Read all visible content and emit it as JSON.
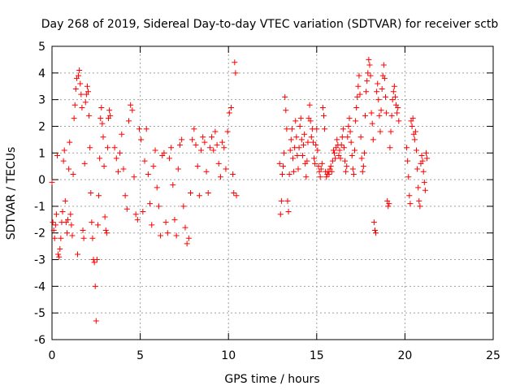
{
  "chart_data": {
    "type": "scatter",
    "title": "Day 268 of 2019, Sidereal Day-to-day VTEC variation (SDTVAR) for receiver sctb",
    "xlabel": "GPS time / hours",
    "ylabel": "SDTVAR / TECUs",
    "xlim": [
      0,
      25
    ],
    "ylim": [
      -6,
      5
    ],
    "xticks": [
      0,
      5,
      10,
      15,
      20,
      25
    ],
    "yticks": [
      -6,
      -5,
      -4,
      -3,
      -2,
      -1,
      0,
      1,
      2,
      3,
      4,
      5
    ],
    "xtick_labels": [
      "0",
      "5",
      "10",
      "15",
      "20",
      "25"
    ],
    "ytick_labels": [
      "-6",
      "-5",
      "-4",
      "-3",
      "-2",
      "-1",
      "0",
      "1",
      "2",
      "3",
      "4",
      "5"
    ],
    "grid": true,
    "marker": "+",
    "series": [
      {
        "name": "SDTVAR",
        "color": "#ff0000",
        "points": [
          [
            0.0,
            -0.1
          ],
          [
            0.05,
            -1.6
          ],
          [
            0.1,
            -1.9
          ],
          [
            0.15,
            -2.2
          ],
          [
            0.2,
            -1.7
          ],
          [
            0.25,
            -1.3
          ],
          [
            0.3,
            0.9
          ],
          [
            0.35,
            -2.8
          ],
          [
            0.4,
            -2.9
          ],
          [
            0.45,
            -2.6
          ],
          [
            0.5,
            -2.2
          ],
          [
            0.55,
            -1.6
          ],
          [
            0.6,
            -1.2
          ],
          [
            0.65,
            0.7
          ],
          [
            0.7,
            1.1
          ],
          [
            0.75,
            -0.8
          ],
          [
            0.8,
            -1.6
          ],
          [
            0.85,
            -2.0
          ],
          [
            0.9,
            -1.5
          ],
          [
            0.95,
            0.4
          ],
          [
            1.0,
            1.4
          ],
          [
            1.05,
            -1.3
          ],
          [
            1.1,
            -1.7
          ],
          [
            1.15,
            -2.1
          ],
          [
            1.2,
            0.2
          ],
          [
            1.25,
            2.3
          ],
          [
            1.3,
            2.8
          ],
          [
            1.35,
            3.4
          ],
          [
            1.4,
            3.8
          ],
          [
            1.45,
            -2.8
          ],
          [
            1.5,
            3.9
          ],
          [
            1.55,
            4.1
          ],
          [
            1.6,
            3.6
          ],
          [
            1.65,
            3.2
          ],
          [
            1.7,
            2.7
          ],
          [
            1.75,
            -1.9
          ],
          [
            1.8,
            -2.2
          ],
          [
            1.85,
            0.6
          ],
          [
            1.9,
            2.9
          ],
          [
            1.95,
            3.2
          ],
          [
            2.0,
            3.5
          ],
          [
            2.05,
            3.3
          ],
          [
            2.1,
            2.4
          ],
          [
            2.15,
            1.2
          ],
          [
            2.2,
            -0.5
          ],
          [
            2.25,
            -1.6
          ],
          [
            2.3,
            -2.2
          ],
          [
            2.35,
            -3.0
          ],
          [
            2.4,
            -3.1
          ],
          [
            2.45,
            -4.0
          ],
          [
            2.5,
            -5.3
          ],
          [
            2.55,
            -3.0
          ],
          [
            2.6,
            -1.7
          ],
          [
            2.65,
            -0.6
          ],
          [
            2.7,
            0.8
          ],
          [
            2.75,
            2.3
          ],
          [
            2.8,
            2.7
          ],
          [
            2.85,
            2.1
          ],
          [
            2.9,
            1.6
          ],
          [
            2.95,
            0.5
          ],
          [
            3.0,
            -1.4
          ],
          [
            3.05,
            -1.9
          ],
          [
            3.1,
            -2.0
          ],
          [
            3.15,
            1.2
          ],
          [
            3.2,
            2.3
          ],
          [
            3.25,
            2.6
          ],
          [
            3.3,
            2.4
          ],
          [
            3.55,
            1.2
          ],
          [
            3.65,
            0.8
          ],
          [
            3.75,
            0.3
          ],
          [
            3.85,
            1.0
          ],
          [
            3.95,
            1.7
          ],
          [
            4.05,
            0.4
          ],
          [
            4.15,
            -0.6
          ],
          [
            4.25,
            -1.1
          ],
          [
            4.35,
            2.2
          ],
          [
            4.45,
            2.8
          ],
          [
            4.55,
            2.6
          ],
          [
            4.65,
            0.1
          ],
          [
            4.75,
            -1.3
          ],
          [
            4.85,
            -1.5
          ],
          [
            4.95,
            1.9
          ],
          [
            5.05,
            1.5
          ],
          [
            5.15,
            -1.2
          ],
          [
            5.25,
            0.7
          ],
          [
            5.35,
            1.9
          ],
          [
            5.45,
            0.2
          ],
          [
            5.55,
            -0.9
          ],
          [
            5.65,
            -1.7
          ],
          [
            5.75,
            0.5
          ],
          [
            5.85,
            1.1
          ],
          [
            5.95,
            -0.3
          ],
          [
            6.05,
            -1.0
          ],
          [
            6.15,
            -2.1
          ],
          [
            6.25,
            0.9
          ],
          [
            6.35,
            1.0
          ],
          [
            6.45,
            -1.6
          ],
          [
            6.55,
            -2.0
          ],
          [
            6.65,
            0.8
          ],
          [
            6.75,
            1.2
          ],
          [
            6.85,
            -0.2
          ],
          [
            6.95,
            -1.5
          ],
          [
            7.05,
            -2.1
          ],
          [
            7.15,
            0.4
          ],
          [
            7.25,
            1.3
          ],
          [
            7.35,
            1.5
          ],
          [
            7.45,
            -1.0
          ],
          [
            7.55,
            -1.8
          ],
          [
            7.65,
            -2.4
          ],
          [
            7.75,
            -2.2
          ],
          [
            7.85,
            -0.5
          ],
          [
            7.95,
            1.5
          ],
          [
            8.05,
            1.9
          ],
          [
            8.15,
            1.3
          ],
          [
            8.25,
            0.5
          ],
          [
            8.35,
            -0.6
          ],
          [
            8.45,
            1.1
          ],
          [
            8.55,
            1.6
          ],
          [
            8.65,
            1.4
          ],
          [
            8.75,
            0.3
          ],
          [
            8.85,
            -0.5
          ],
          [
            8.95,
            1.2
          ],
          [
            9.05,
            1.6
          ],
          [
            9.15,
            1.1
          ],
          [
            9.25,
            1.8
          ],
          [
            9.35,
            1.3
          ],
          [
            9.45,
            0.6
          ],
          [
            9.55,
            0.1
          ],
          [
            9.65,
            1.4
          ],
          [
            9.75,
            1.2
          ],
          [
            9.85,
            0.4
          ],
          [
            9.95,
            1.8
          ],
          [
            10.05,
            2.5
          ],
          [
            10.15,
            2.7
          ],
          [
            10.25,
            0.2
          ],
          [
            10.3,
            -0.5
          ],
          [
            10.35,
            4.4
          ],
          [
            10.4,
            4.0
          ],
          [
            10.45,
            -0.6
          ],
          [
            12.9,
            0.6
          ],
          [
            12.95,
            -1.3
          ],
          [
            13.0,
            -0.8
          ],
          [
            13.05,
            0.2
          ],
          [
            13.1,
            0.5
          ],
          [
            13.15,
            1.0
          ],
          [
            13.2,
            3.1
          ],
          [
            13.25,
            2.6
          ],
          [
            13.3,
            1.9
          ],
          [
            13.35,
            -0.8
          ],
          [
            13.4,
            -1.2
          ],
          [
            13.45,
            0.2
          ],
          [
            13.5,
            1.1
          ],
          [
            13.55,
            1.5
          ],
          [
            13.6,
            1.9
          ],
          [
            13.65,
            0.8
          ],
          [
            13.7,
            0.3
          ],
          [
            13.75,
            1.2
          ],
          [
            13.8,
            2.2
          ],
          [
            13.85,
            1.6
          ],
          [
            13.9,
            0.9
          ],
          [
            13.95,
            0.4
          ],
          [
            14.0,
            1.2
          ],
          [
            14.05,
            2.0
          ],
          [
            14.1,
            2.3
          ],
          [
            14.15,
            1.5
          ],
          [
            14.2,
            0.9
          ],
          [
            14.25,
            1.3
          ],
          [
            14.3,
            1.7
          ],
          [
            14.35,
            0.6
          ],
          [
            14.4,
            0.1
          ],
          [
            14.45,
            0.7
          ],
          [
            14.5,
            1.4
          ],
          [
            14.55,
            2.3
          ],
          [
            14.6,
            2.8
          ],
          [
            14.65,
            2.2
          ],
          [
            14.7,
            1.6
          ],
          [
            14.75,
            1.9
          ],
          [
            14.8,
            1.4
          ],
          [
            14.85,
            0.8
          ],
          [
            14.9,
            0.6
          ],
          [
            14.95,
            1.3
          ],
          [
            15.0,
            1.9
          ],
          [
            15.05,
            1.1
          ],
          [
            15.1,
            0.5
          ],
          [
            15.15,
            0.3
          ],
          [
            15.2,
            0.1
          ],
          [
            15.25,
            0.4
          ],
          [
            15.3,
            0.6
          ],
          [
            15.35,
            2.7
          ],
          [
            15.4,
            2.4
          ],
          [
            15.45,
            1.9
          ],
          [
            15.5,
            0.3
          ],
          [
            15.55,
            0.1
          ],
          [
            15.6,
            0.2
          ],
          [
            15.65,
            0.3
          ],
          [
            15.7,
            0.2
          ],
          [
            15.75,
            0.4
          ],
          [
            15.8,
            0.5
          ],
          [
            15.85,
            0.3
          ],
          [
            15.9,
            0.7
          ],
          [
            15.95,
            1.1
          ],
          [
            16.0,
            1.0
          ],
          [
            16.05,
            0.8
          ],
          [
            16.1,
            1.2
          ],
          [
            16.15,
            1.5
          ],
          [
            16.2,
            1.3
          ],
          [
            16.25,
            0.9
          ],
          [
            16.3,
            1.1
          ],
          [
            16.35,
            0.8
          ],
          [
            16.4,
            1.3
          ],
          [
            16.45,
            1.6
          ],
          [
            16.5,
            1.9
          ],
          [
            16.55,
            1.2
          ],
          [
            16.6,
            0.7
          ],
          [
            16.65,
            0.3
          ],
          [
            16.7,
            0.5
          ],
          [
            16.75,
            1.6
          ],
          [
            16.8,
            2.0
          ],
          [
            16.85,
            2.3
          ],
          [
            16.9,
            1.8
          ],
          [
            16.95,
            1.4
          ],
          [
            17.0,
            0.9
          ],
          [
            17.05,
            0.4
          ],
          [
            17.1,
            0.2
          ],
          [
            17.15,
            1.1
          ],
          [
            17.2,
            2.2
          ],
          [
            17.25,
            2.7
          ],
          [
            17.3,
            3.1
          ],
          [
            17.35,
            3.5
          ],
          [
            17.4,
            3.9
          ],
          [
            17.45,
            3.2
          ],
          [
            17.5,
            1.6
          ],
          [
            17.55,
            0.8
          ],
          [
            17.6,
            0.3
          ],
          [
            17.65,
            0.5
          ],
          [
            17.7,
            1.0
          ],
          [
            17.75,
            2.4
          ],
          [
            17.8,
            3.3
          ],
          [
            17.85,
            3.7
          ],
          [
            17.9,
            4.0
          ],
          [
            17.95,
            4.5
          ],
          [
            18.0,
            4.3
          ],
          [
            18.05,
            3.9
          ],
          [
            18.1,
            2.5
          ],
          [
            18.15,
            2.1
          ],
          [
            18.2,
            1.5
          ],
          [
            18.25,
            -1.6
          ],
          [
            18.3,
            -1.9
          ],
          [
            18.35,
            -2.0
          ],
          [
            18.4,
            3.3
          ],
          [
            18.45,
            3.6
          ],
          [
            18.5,
            3.0
          ],
          [
            18.55,
            2.4
          ],
          [
            18.6,
            1.8
          ],
          [
            18.65,
            2.6
          ],
          [
            18.7,
            3.4
          ],
          [
            18.75,
            3.9
          ],
          [
            18.8,
            4.3
          ],
          [
            18.85,
            3.8
          ],
          [
            18.9,
            3.1
          ],
          [
            18.95,
            2.5
          ],
          [
            19.0,
            -0.8
          ],
          [
            19.05,
            -1.0
          ],
          [
            19.1,
            -0.9
          ],
          [
            19.15,
            1.2
          ],
          [
            19.2,
            1.8
          ],
          [
            19.25,
            2.4
          ],
          [
            19.3,
            3.0
          ],
          [
            19.35,
            3.3
          ],
          [
            19.4,
            3.5
          ],
          [
            19.45,
            3.1
          ],
          [
            19.5,
            2.8
          ],
          [
            19.55,
            2.5
          ],
          [
            19.6,
            2.7
          ],
          [
            19.65,
            2.2
          ],
          [
            20.1,
            1.2
          ],
          [
            20.15,
            0.7
          ],
          [
            20.2,
            0.1
          ],
          [
            20.25,
            -0.6
          ],
          [
            20.3,
            -0.9
          ],
          [
            20.35,
            2.2
          ],
          [
            20.4,
            2.0
          ],
          [
            20.45,
            2.3
          ],
          [
            20.5,
            1.7
          ],
          [
            20.55,
            1.5
          ],
          [
            20.6,
            1.8
          ],
          [
            20.65,
            1.1
          ],
          [
            20.7,
            0.4
          ],
          [
            20.75,
            -0.3
          ],
          [
            20.8,
            -0.8
          ],
          [
            20.85,
            -1.0
          ],
          [
            20.9,
            0.6
          ],
          [
            20.95,
            0.9
          ],
          [
            21.0,
            0.7
          ],
          [
            21.05,
            0.3
          ],
          [
            21.1,
            -0.1
          ],
          [
            21.15,
            -0.4
          ],
          [
            21.2,
            1.0
          ],
          [
            21.25,
            0.8
          ]
        ]
      }
    ]
  }
}
